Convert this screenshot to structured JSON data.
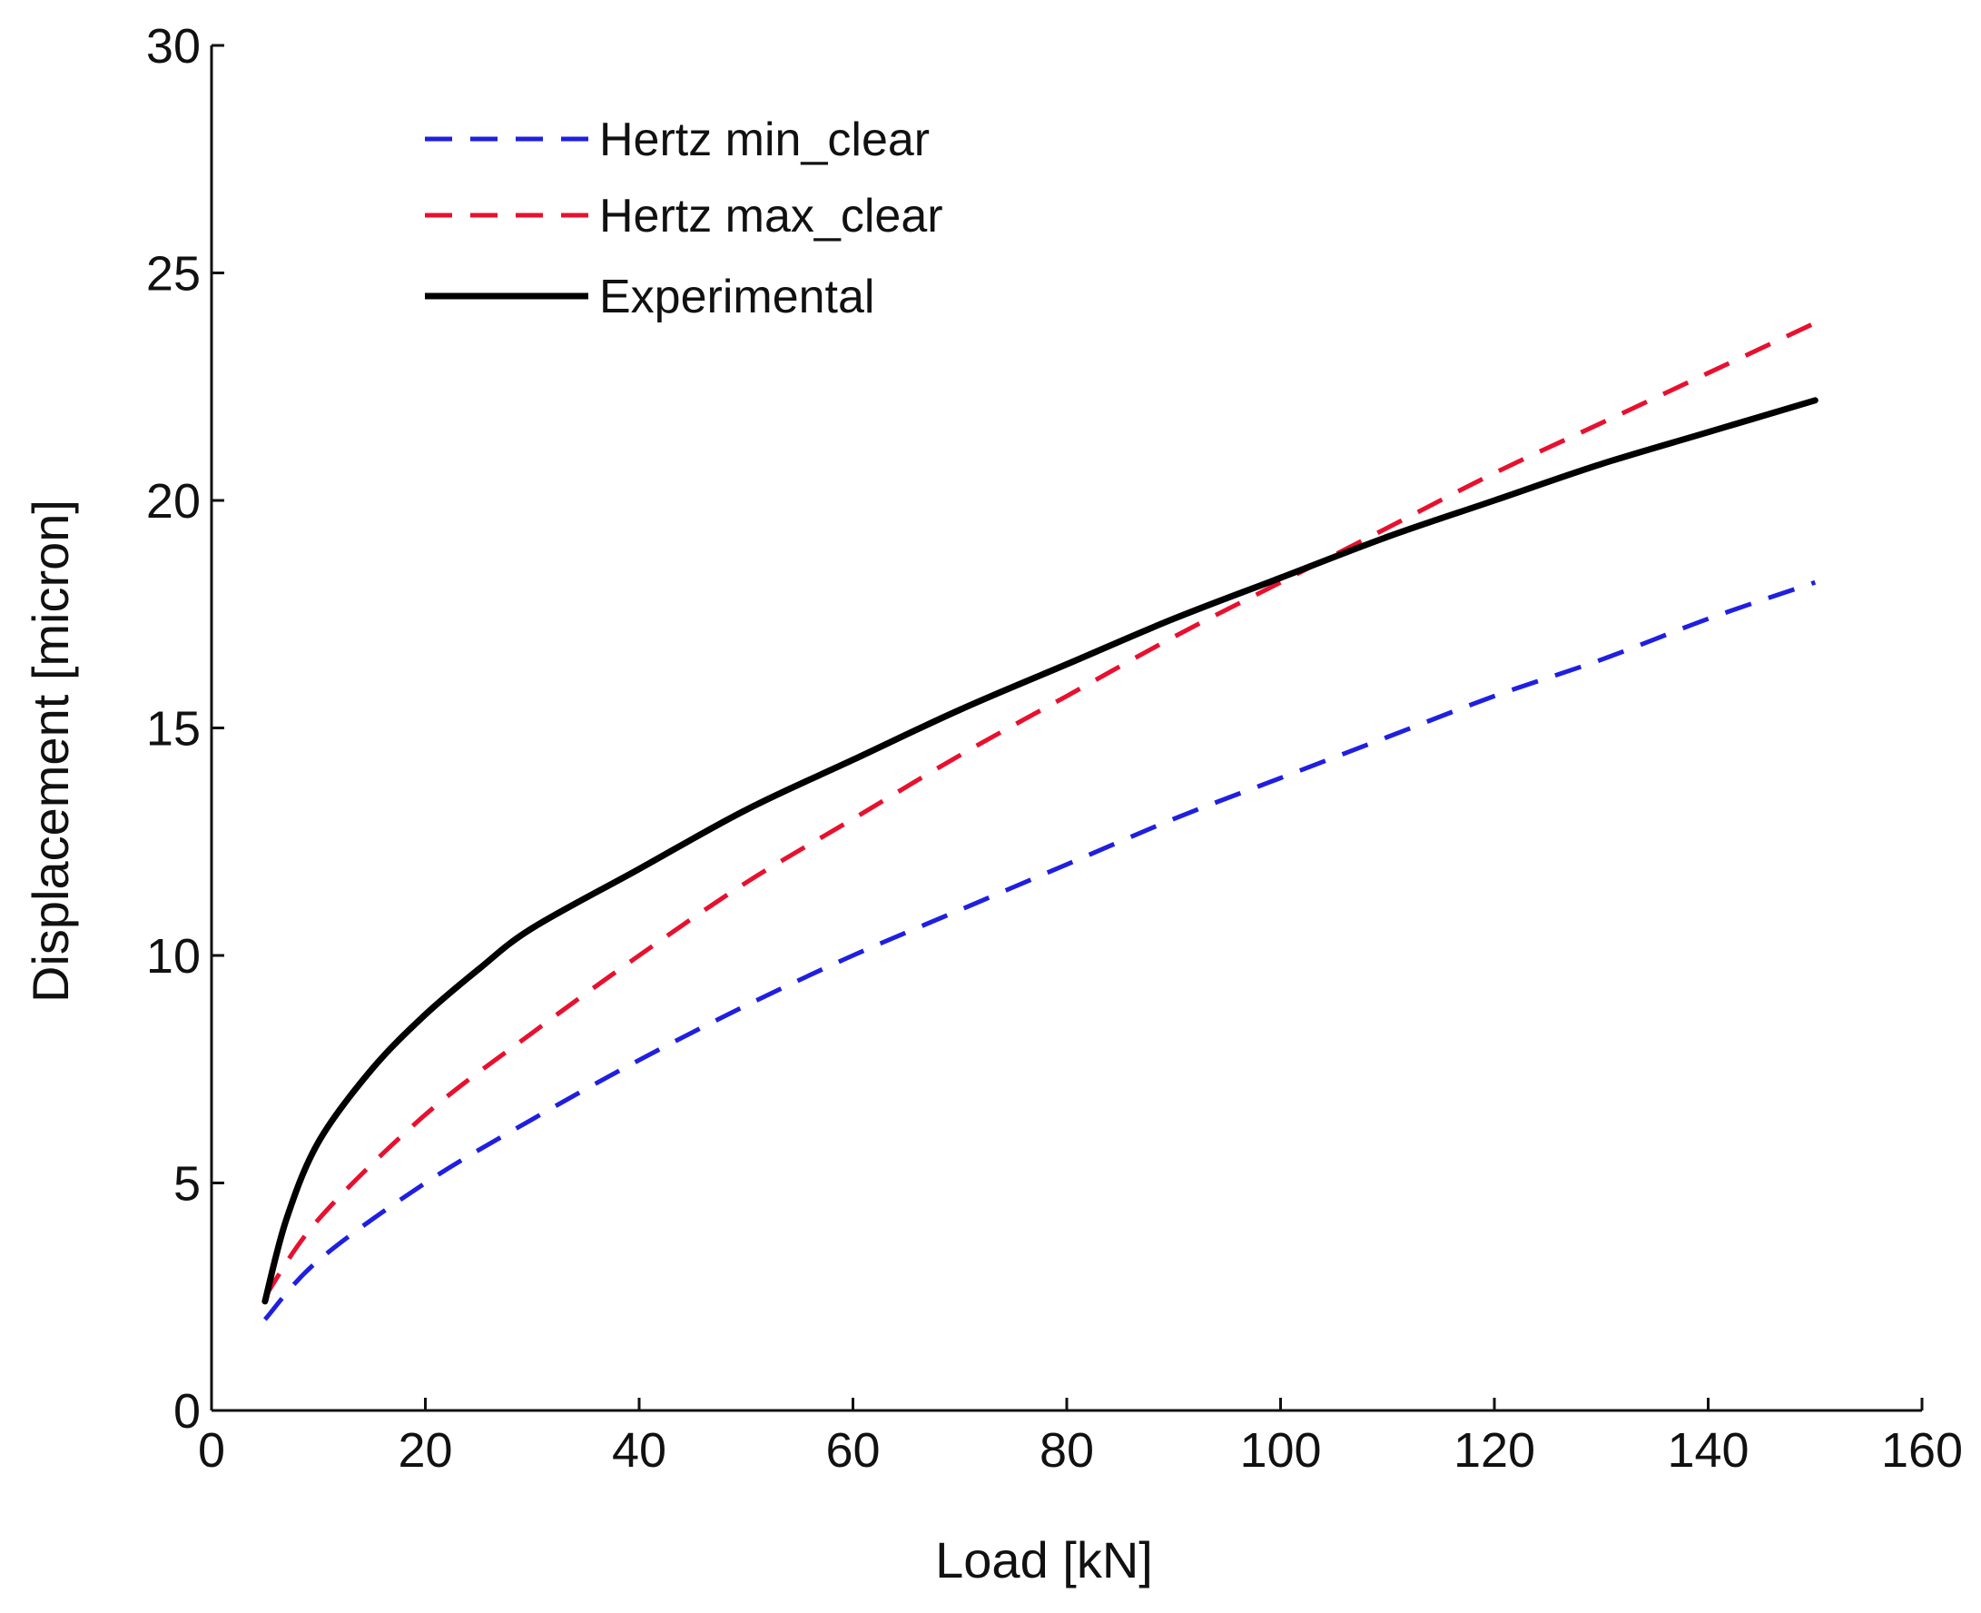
{
  "chart_data": {
    "type": "line",
    "title": "",
    "xlabel": "Load [kN]",
    "ylabel": "Displacement [micron]",
    "xlim": [
      0,
      160
    ],
    "ylim": [
      0,
      30
    ],
    "xticks": [
      0,
      20,
      40,
      60,
      80,
      100,
      120,
      140,
      160
    ],
    "yticks": [
      0,
      5,
      10,
      15,
      20,
      25,
      30
    ],
    "grid": false,
    "legend_position": "top-left",
    "series": [
      {
        "name": "Hertz min_clear",
        "color": "#1f1fe0",
        "style": "dashed",
        "x": [
          5,
          10,
          20,
          30,
          40,
          50,
          60,
          70,
          80,
          90,
          100,
          110,
          120,
          130,
          140,
          150
        ],
        "y": [
          2.0,
          3.3,
          5.0,
          6.4,
          7.7,
          8.9,
          10.0,
          11.0,
          12.0,
          13.0,
          13.9,
          14.8,
          15.7,
          16.5,
          17.4,
          18.2
        ]
      },
      {
        "name": "Hertz max_clear",
        "color": "#e8102e",
        "style": "dashed",
        "x": [
          5,
          10,
          20,
          30,
          40,
          50,
          60,
          70,
          80,
          90,
          100,
          110,
          120,
          130,
          140,
          150
        ],
        "y": [
          2.5,
          4.2,
          6.5,
          8.3,
          10.0,
          11.6,
          13.0,
          14.4,
          15.7,
          17.0,
          18.2,
          19.4,
          20.6,
          21.7,
          22.8,
          23.9
        ]
      },
      {
        "name": "Experimental",
        "color": "#000000",
        "style": "solid",
        "x": [
          5,
          7,
          10,
          15,
          20,
          25,
          30,
          40,
          50,
          60,
          70,
          80,
          90,
          100,
          110,
          120,
          130,
          140,
          150
        ],
        "y": [
          2.4,
          4.2,
          5.9,
          7.5,
          8.7,
          9.7,
          10.6,
          11.9,
          13.2,
          14.3,
          15.4,
          16.4,
          17.4,
          18.3,
          19.2,
          20.0,
          20.8,
          21.5,
          22.2
        ]
      }
    ]
  }
}
